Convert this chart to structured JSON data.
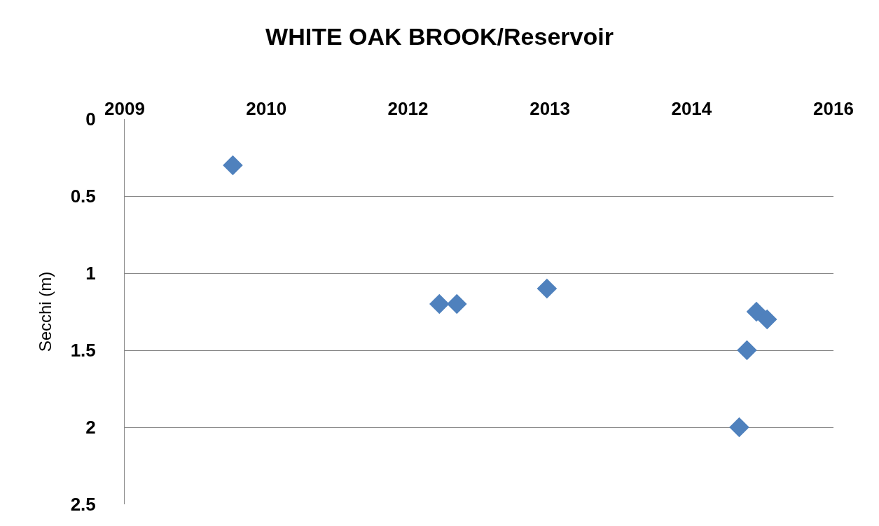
{
  "chart_data": {
    "type": "scatter",
    "title": "WHITE OAK BROOK/Reservoir",
    "ylabel": "Secchi (m)",
    "x": [
      "2010-07-02",
      "2012-05-29",
      "2012-07-27",
      "2013-05-27",
      "2015-03-07",
      "2015-04-02",
      "2015-05-04",
      "2015-06-09"
    ],
    "values": [
      0.3,
      1.2,
      1.2,
      1.1,
      2.0,
      1.5,
      1.25,
      1.3
    ],
    "color": "#4f81bd",
    "marker": "diamond",
    "xlim": [
      "2009-07-02",
      "2016-01-19"
    ],
    "xticks": [
      {
        "value": "2009-07-02",
        "label": "2009"
      },
      {
        "value": "2010-10-23",
        "label": "2010"
      },
      {
        "value": "2012-02-13",
        "label": "2012"
      },
      {
        "value": "2013-06-06",
        "label": "2013"
      },
      {
        "value": "2014-09-27",
        "label": "2014"
      },
      {
        "value": "2016-01-19",
        "label": "2016"
      }
    ],
    "ylim": [
      2.5,
      0
    ],
    "yticks": [
      0,
      0.5,
      1,
      1.5,
      2,
      2.5
    ],
    "grid": "y"
  }
}
